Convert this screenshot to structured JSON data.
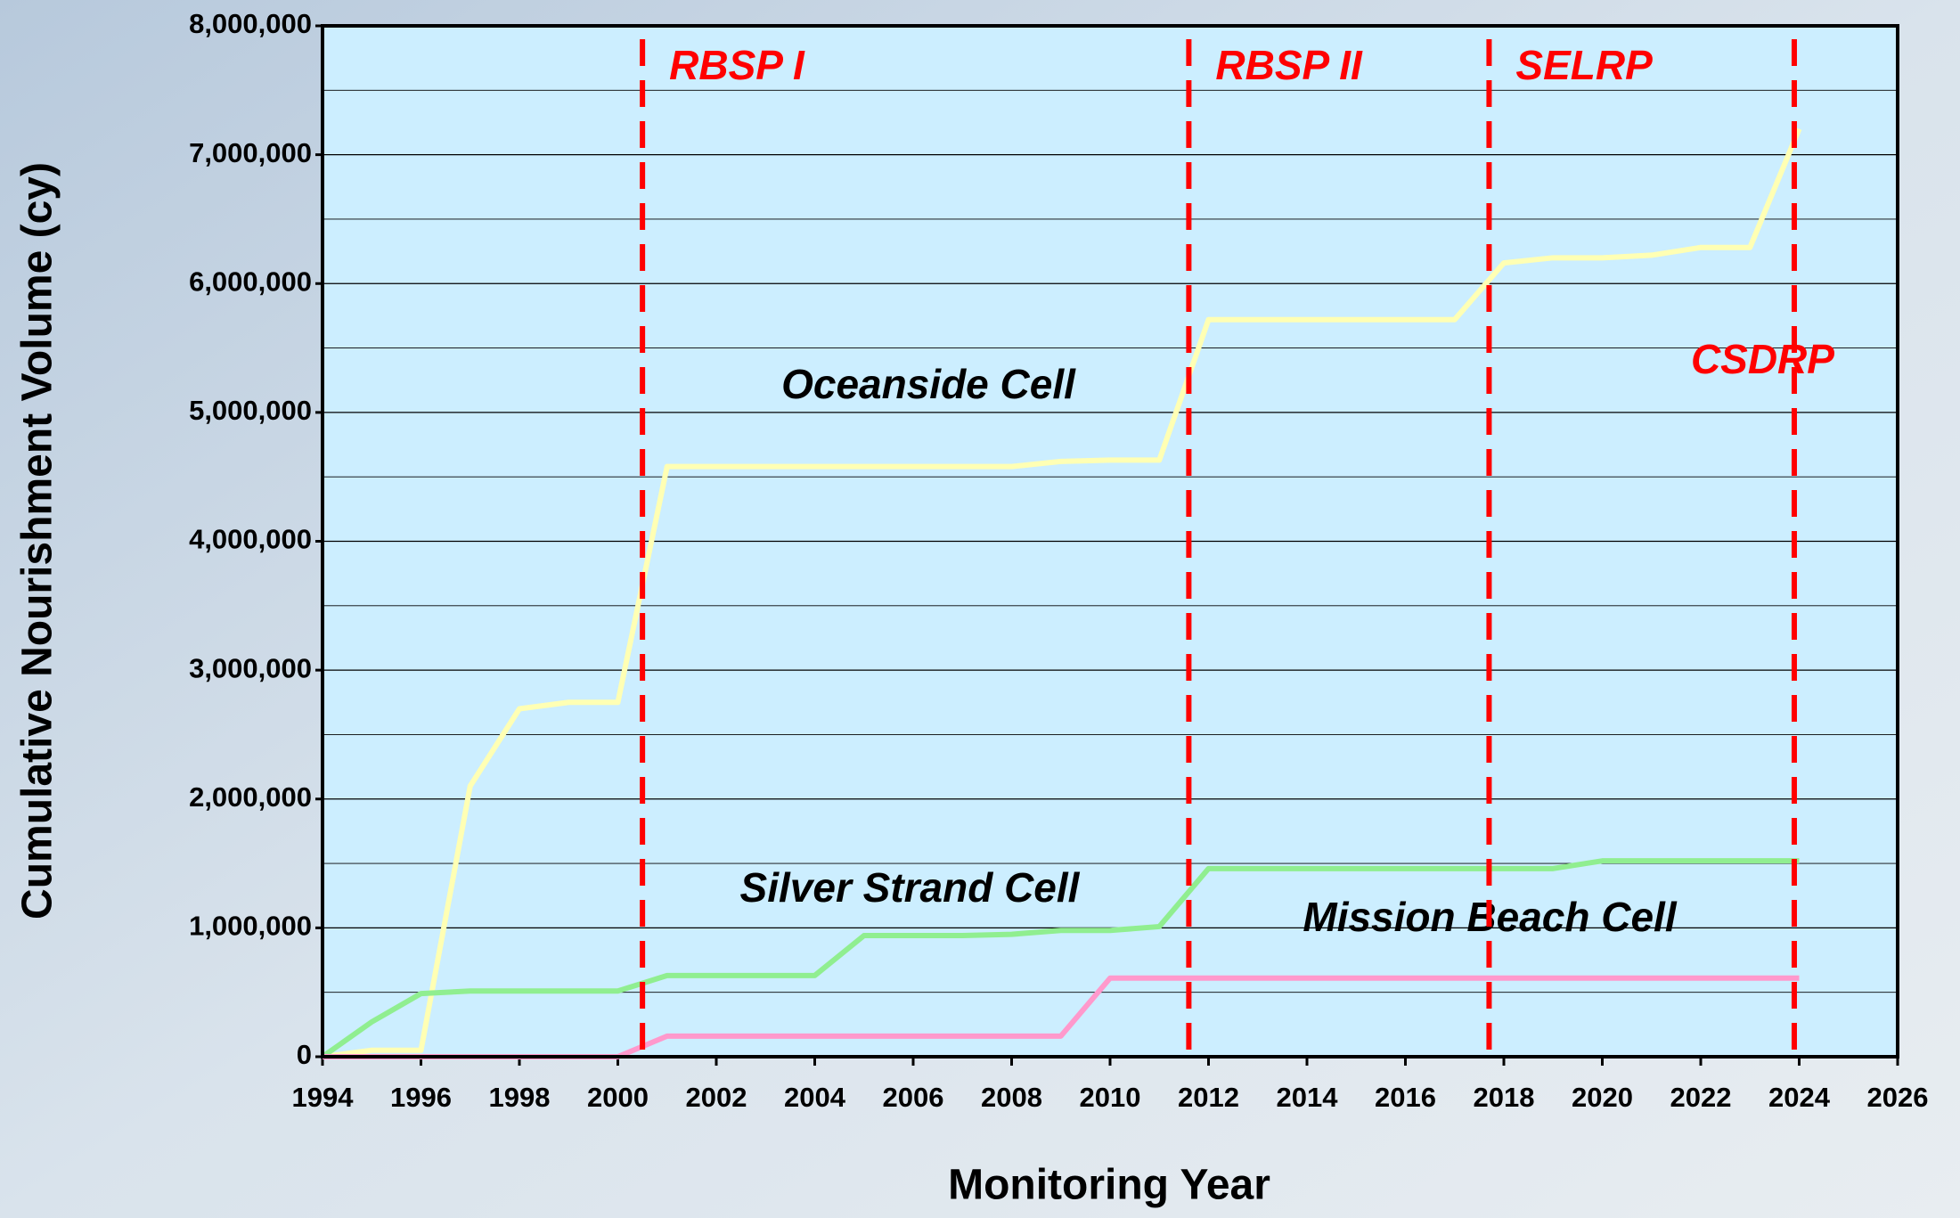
{
  "chart_data": {
    "type": "line",
    "x_label": "Monitoring Year",
    "y_label": "Cumulative Nourishment Volume (cy)",
    "x": [
      1994,
      1995,
      1996,
      1997,
      1998,
      1999,
      2000,
      2001,
      2002,
      2003,
      2004,
      2005,
      2006,
      2007,
      2008,
      2009,
      2010,
      2011,
      2012,
      2013,
      2014,
      2015,
      2016,
      2017,
      2018,
      2019,
      2020,
      2021,
      2022,
      2023,
      2024
    ],
    "series": [
      {
        "name": "Oceanside Cell",
        "color": "#ffffb4",
        "values": [
          0,
          50000,
          50000,
          2100000,
          2700000,
          2750000,
          2750000,
          4580000,
          4580000,
          4580000,
          4580000,
          4580000,
          4580000,
          4580000,
          4580000,
          4620000,
          4630000,
          4630000,
          5720000,
          5720000,
          5720000,
          5720000,
          5720000,
          5720000,
          6160000,
          6200000,
          6200000,
          6220000,
          6280000,
          6280000,
          7200000
        ]
      },
      {
        "name": "Silver Strand Cell",
        "color": "#90ee90",
        "values": [
          0,
          270000,
          490000,
          510000,
          510000,
          510000,
          510000,
          630000,
          630000,
          630000,
          630000,
          940000,
          940000,
          940000,
          950000,
          980000,
          980000,
          1010000,
          1460000,
          1460000,
          1460000,
          1460000,
          1460000,
          1460000,
          1460000,
          1460000,
          1520000,
          1520000,
          1520000,
          1520000,
          1520000
        ]
      },
      {
        "name": "Mission Beach Cell",
        "color": "#ff99cc",
        "values": [
          0,
          0,
          0,
          0,
          0,
          0,
          0,
          160000,
          160000,
          160000,
          160000,
          160000,
          160000,
          160000,
          160000,
          160000,
          610000,
          610000,
          610000,
          610000,
          610000,
          610000,
          610000,
          610000,
          610000,
          610000,
          610000,
          610000,
          610000,
          610000,
          610000
        ]
      }
    ],
    "markers": [
      {
        "label": "RBSP I",
        "x": 2000.5
      },
      {
        "label": "RBSP II",
        "x": 2011.6
      },
      {
        "label": "SELRP",
        "x": 2017.7
      },
      {
        "label": "CSDRP",
        "x": 2023.9
      }
    ],
    "marker_color": "#ff0000",
    "xlim": [
      1994,
      2026
    ],
    "xticks": [
      1994,
      1996,
      1998,
      2000,
      2002,
      2004,
      2006,
      2008,
      2010,
      2012,
      2014,
      2016,
      2018,
      2020,
      2022,
      2024,
      2026
    ],
    "ylim": [
      0,
      8000000
    ],
    "yticks": [
      0,
      {
        "value": 1000000,
        "label": "1,000,000"
      },
      {
        "value": 2000000,
        "label": "2,000,000"
      },
      {
        "value": 3000000,
        "label": "3,000,000"
      },
      {
        "value": 4000000,
        "label": "4,000,000"
      },
      {
        "value": 5000000,
        "label": "5,000,000"
      },
      {
        "value": 6000000,
        "label": "6,000,000"
      },
      {
        "value": 7000000,
        "label": "7,000,000"
      },
      {
        "value": 8000000,
        "label": "8,000,000"
      }
    ],
    "grid": true
  }
}
